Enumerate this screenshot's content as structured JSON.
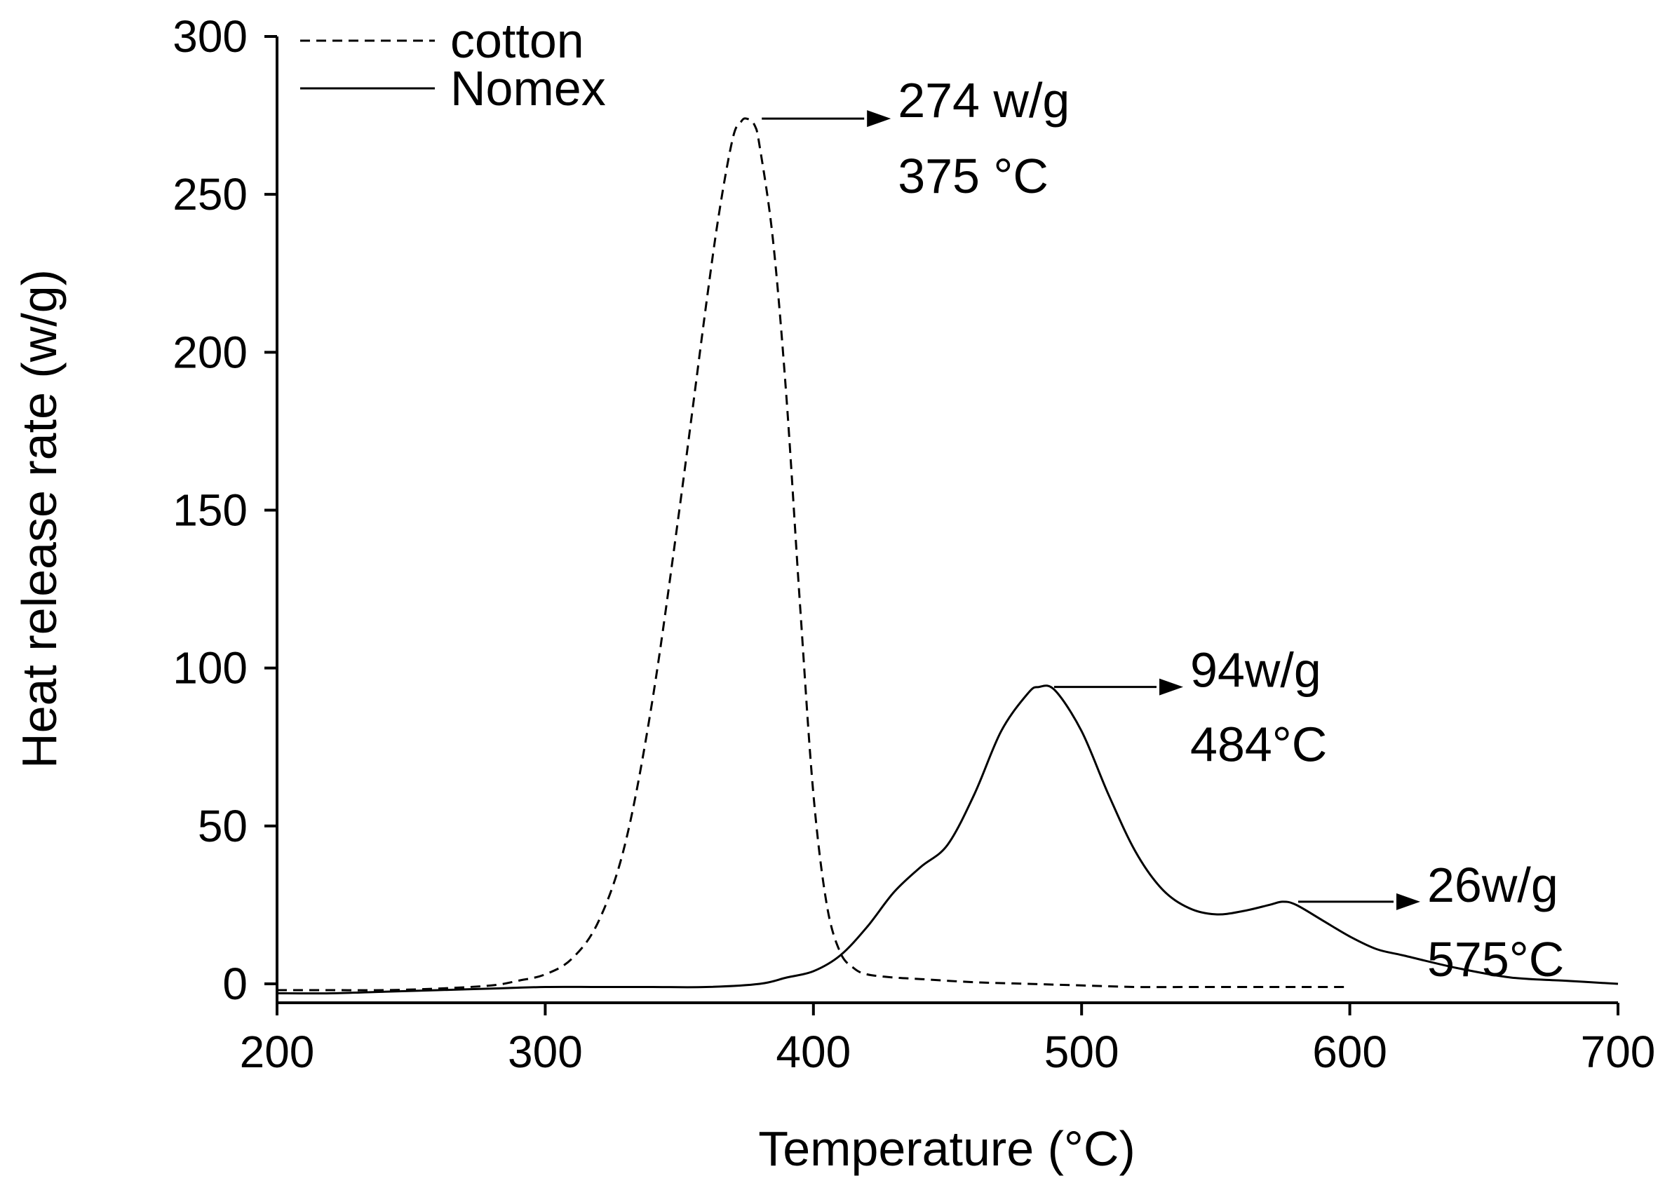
{
  "chart_data": {
    "type": "line",
    "xlabel": "Temperature (°C)",
    "ylabel": "Heat release rate (w/g)",
    "xlim": [
      200,
      700
    ],
    "ylim": [
      -5,
      300
    ],
    "xticks": [
      200,
      300,
      400,
      500,
      600,
      700
    ],
    "xtick_labels": [
      "200",
      "300",
      "400",
      "500",
      "600",
      "700"
    ],
    "yticks": [
      0,
      50,
      100,
      150,
      200,
      250,
      300
    ],
    "ytick_labels": [
      "0",
      "50",
      "100",
      "150",
      "200",
      "250",
      "300"
    ],
    "legend_position": "top-left",
    "series": [
      {
        "name": "cotton",
        "style": "dashed",
        "color": "#000000",
        "x": [
          200,
          220,
          240,
          260,
          280,
          290,
          300,
          310,
          320,
          330,
          340,
          350,
          360,
          365,
          370,
          373,
          375,
          378,
          380,
          385,
          390,
          395,
          400,
          405,
          410,
          415,
          420,
          430,
          440,
          460,
          480,
          500,
          520,
          540,
          560,
          580,
          600
        ],
        "y": [
          -2,
          -2,
          -2,
          -1.5,
          -0.5,
          1,
          3,
          8,
          20,
          45,
          90,
          150,
          215,
          245,
          268,
          273,
          274,
          272,
          265,
          235,
          185,
          120,
          60,
          25,
          10,
          5,
          3,
          2,
          1.5,
          0.5,
          0,
          -0.5,
          -1,
          -1,
          -1,
          -1,
          -1
        ]
      },
      {
        "name": "Nomex",
        "style": "solid",
        "color": "#000000",
        "x": [
          200,
          220,
          240,
          260,
          280,
          300,
          320,
          340,
          360,
          380,
          390,
          400,
          410,
          420,
          430,
          440,
          450,
          460,
          470,
          480,
          484,
          490,
          500,
          510,
          520,
          530,
          540,
          550,
          560,
          570,
          575,
          580,
          590,
          600,
          610,
          620,
          640,
          660,
          680,
          700
        ],
        "y": [
          -3,
          -3,
          -2.5,
          -2,
          -1.5,
          -1,
          -1,
          -1,
          -1,
          0,
          2,
          4,
          9,
          18,
          29,
          37,
          44,
          60,
          80,
          92,
          94,
          93,
          80,
          60,
          42,
          30,
          24,
          22,
          23,
          25,
          26,
          25,
          20,
          15,
          11,
          9,
          5,
          2,
          1,
          0
        ]
      }
    ],
    "annotations": [
      {
        "lines": [
          "274 w/g",
          "375 °C"
        ],
        "series": "cotton",
        "x": 375,
        "y": 274
      },
      {
        "lines": [
          "94w/g",
          "484°C"
        ],
        "series": "Nomex",
        "x": 484,
        "y": 94
      },
      {
        "lines": [
          "26w/g",
          "575°C"
        ],
        "series": "Nomex",
        "x": 575,
        "y": 26
      }
    ]
  }
}
